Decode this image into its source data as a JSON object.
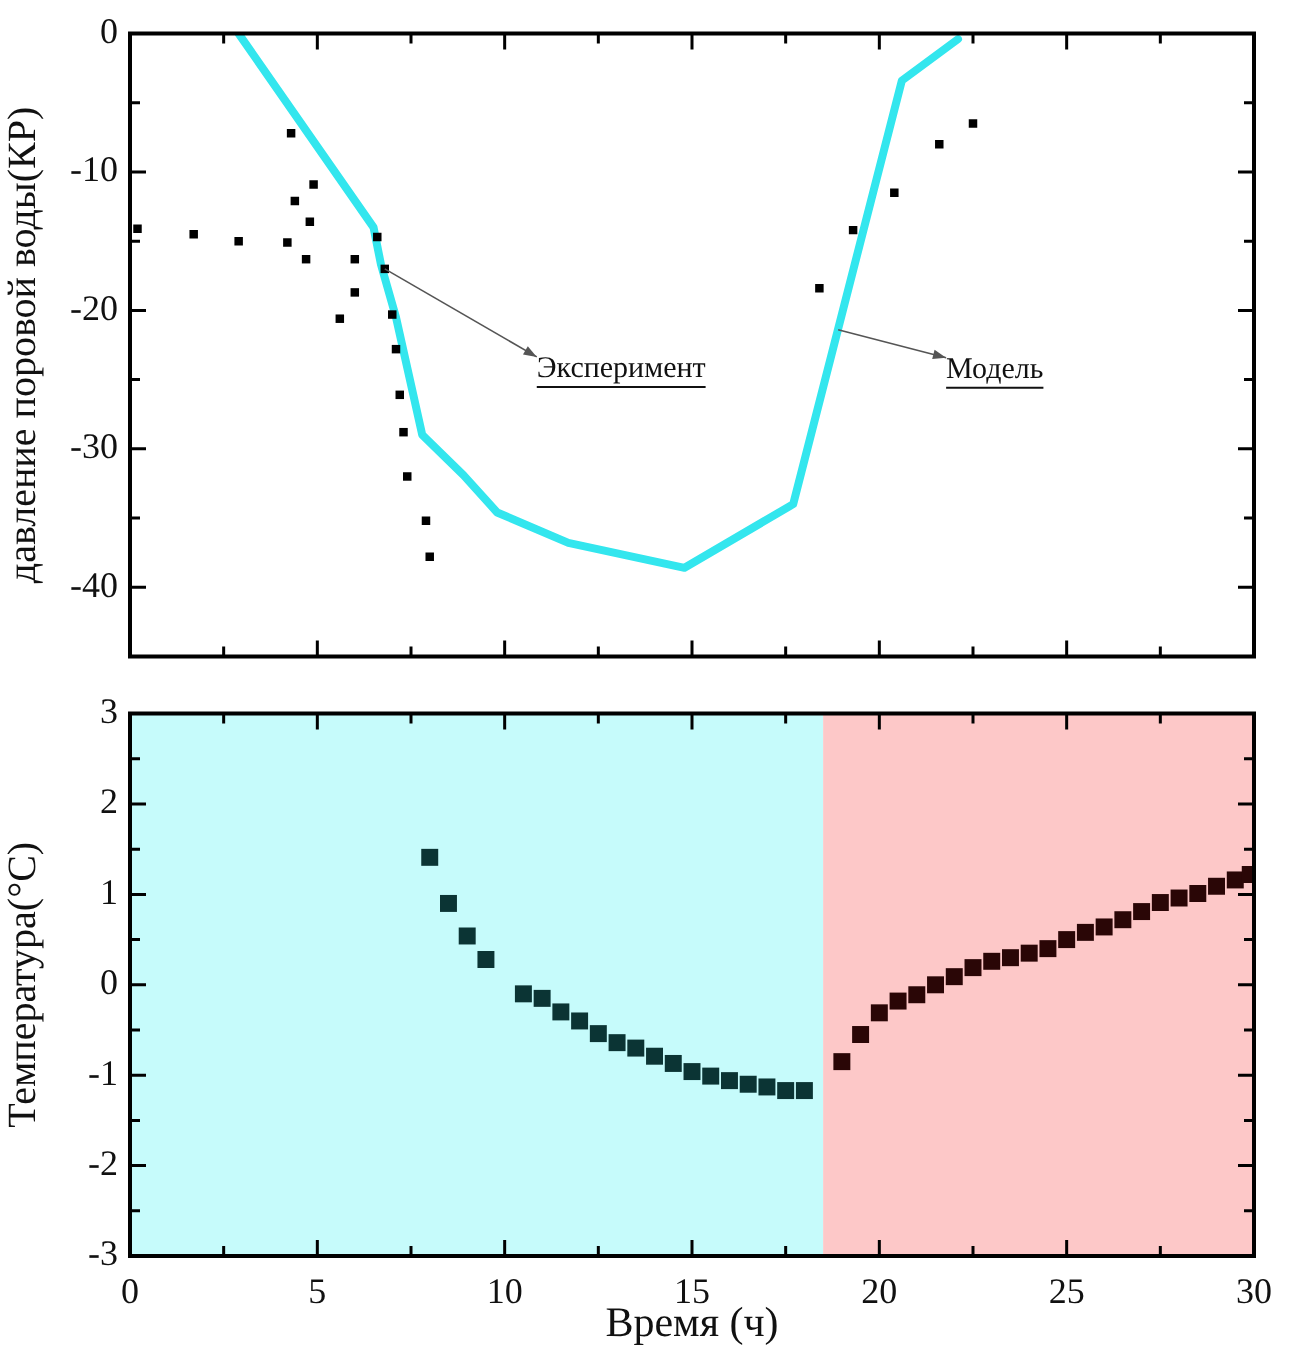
{
  "chart_data": [
    {
      "type": "scatter",
      "ylabel": "давление поровой воды(КР)",
      "xlim": [
        0,
        30
      ],
      "ylim": [
        -45,
        0
      ],
      "xticks": [
        0,
        {
          "value": 2.5,
          "label": null
        },
        5,
        {
          "value": 7.5,
          "label": null
        },
        10,
        {
          "value": 12.5,
          "label": null
        },
        15,
        {
          "value": 17.5,
          "label": null
        },
        20,
        {
          "value": 22.5,
          "label": null
        },
        25,
        {
          "value": 27.5,
          "label": null
        },
        30
      ],
      "yticks": [
        -40,
        {
          "value": -35,
          "label": null
        },
        -30,
        {
          "value": -25,
          "label": null
        },
        -20,
        {
          "value": -15,
          "label": null
        },
        -10,
        {
          "value": -5,
          "label": null
        },
        0
      ],
      "tick_labels": "y",
      "grid": false,
      "legend": false,
      "marker": "square",
      "series": [
        {
          "color": "#000000",
          "x": [
            0.2,
            1.7,
            2.9,
            4.2,
            4.3,
            4.4,
            4.8,
            4.7,
            4.9,
            5.6,
            6.0,
            6.0,
            6.6,
            6.8,
            7.0,
            7.1,
            7.2,
            7.3,
            7.4,
            7.9,
            8.0,
            18.4,
            19.3,
            20.4,
            21.6,
            22.5
          ],
          "values": [
            -14.1,
            -14.5,
            -15.0,
            -15.1,
            -7.2,
            -12.1,
            -13.6,
            -16.3,
            -10.9,
            -20.6,
            -18.7,
            -16.3,
            -14.7,
            -17.0,
            -20.3,
            -22.8,
            -26.1,
            -28.8,
            -32.0,
            -35.2,
            -37.8,
            -18.4,
            -14.2,
            -11.5,
            -8.0,
            -6.5
          ]
        },
        {
          "type": "line",
          "marker": "none",
          "color": "#33e6ee",
          "x": [
            2.9,
            6.5,
            6.7,
            7.1,
            7.8,
            8.9,
            9.8,
            11.7,
            14.8,
            17.7,
            20.6,
            22.1
          ],
          "values": [
            0,
            -14,
            -16.7,
            -20.5,
            -29,
            -31.9,
            -34.6,
            -36.8,
            -38.6,
            -34,
            -3.4,
            -0.4
          ]
        }
      ],
      "annotations": [
        {
          "text": "Эксперимент",
          "x": 6.8,
          "y": -17.0
        },
        {
          "text": "Модель",
          "x": 18.9,
          "y": -21.4
        }
      ]
    },
    {
      "type": "scatter",
      "ylabel": "Температура(°C)",
      "xlabel": "Время (ч)",
      "xlim": [
        0,
        30
      ],
      "ylim": [
        -3,
        3
      ],
      "xticks": [
        0,
        {
          "value": 2.5,
          "label": null
        },
        5,
        {
          "value": 7.5,
          "label": null
        },
        10,
        {
          "value": 12.5,
          "label": null
        },
        15,
        {
          "value": 17.5,
          "label": null
        },
        20,
        {
          "value": 22.5,
          "label": null
        },
        25,
        {
          "value": 27.5,
          "label": null
        },
        30
      ],
      "yticks": [
        -3,
        {
          "value": -2.5,
          "label": null
        },
        -2,
        {
          "value": -1.5,
          "label": null
        },
        -1,
        {
          "value": -0.5,
          "label": null
        },
        0,
        {
          "value": 0.5,
          "label": null
        },
        1,
        {
          "value": 1.5,
          "label": null
        },
        2,
        {
          "value": 2.5,
          "label": null
        },
        3
      ],
      "grid": false,
      "legend": false,
      "marker": "square",
      "bands": [
        {
          "axis": "x",
          "from": 0,
          "to": 18.5,
          "color": "#c6fbfb"
        },
        {
          "axis": "x",
          "from": 18.5,
          "to": 30,
          "color": "#fdc8c8"
        }
      ],
      "series": [
        {
          "color": "#0b3434",
          "x": [
            8.0,
            8.5,
            9.0,
            9.5,
            10.5,
            11.0,
            11.5,
            12.0,
            12.5,
            13.0,
            13.5,
            14.0,
            14.5,
            15.0,
            15.5,
            16.0,
            16.5,
            17.0,
            17.5,
            18.0
          ],
          "values": [
            1.41,
            0.9,
            0.54,
            0.28,
            -0.1,
            -0.15,
            -0.3,
            -0.4,
            -0.54,
            -0.64,
            -0.7,
            -0.79,
            -0.87,
            -0.96,
            -1.01,
            -1.06,
            -1.1,
            -1.13,
            -1.17,
            -1.17
          ]
        },
        {
          "color": "#2a0606",
          "x": [
            19.0,
            19.5,
            20.0,
            20.5,
            21.0,
            21.5,
            22.0,
            22.5,
            23.0,
            23.5,
            24.0,
            24.5,
            25.0,
            25.5,
            26.0,
            26.5,
            27.0,
            27.5,
            28.0,
            28.5,
            29.0,
            29.5,
            29.9
          ],
          "values": [
            -0.85,
            -0.55,
            -0.31,
            -0.18,
            -0.11,
            0,
            0.09,
            0.19,
            0.26,
            0.3,
            0.35,
            0.4,
            0.5,
            0.58,
            0.64,
            0.72,
            0.81,
            0.91,
            0.96,
            1.01,
            1.09,
            1.16,
            1.22
          ]
        }
      ]
    }
  ]
}
